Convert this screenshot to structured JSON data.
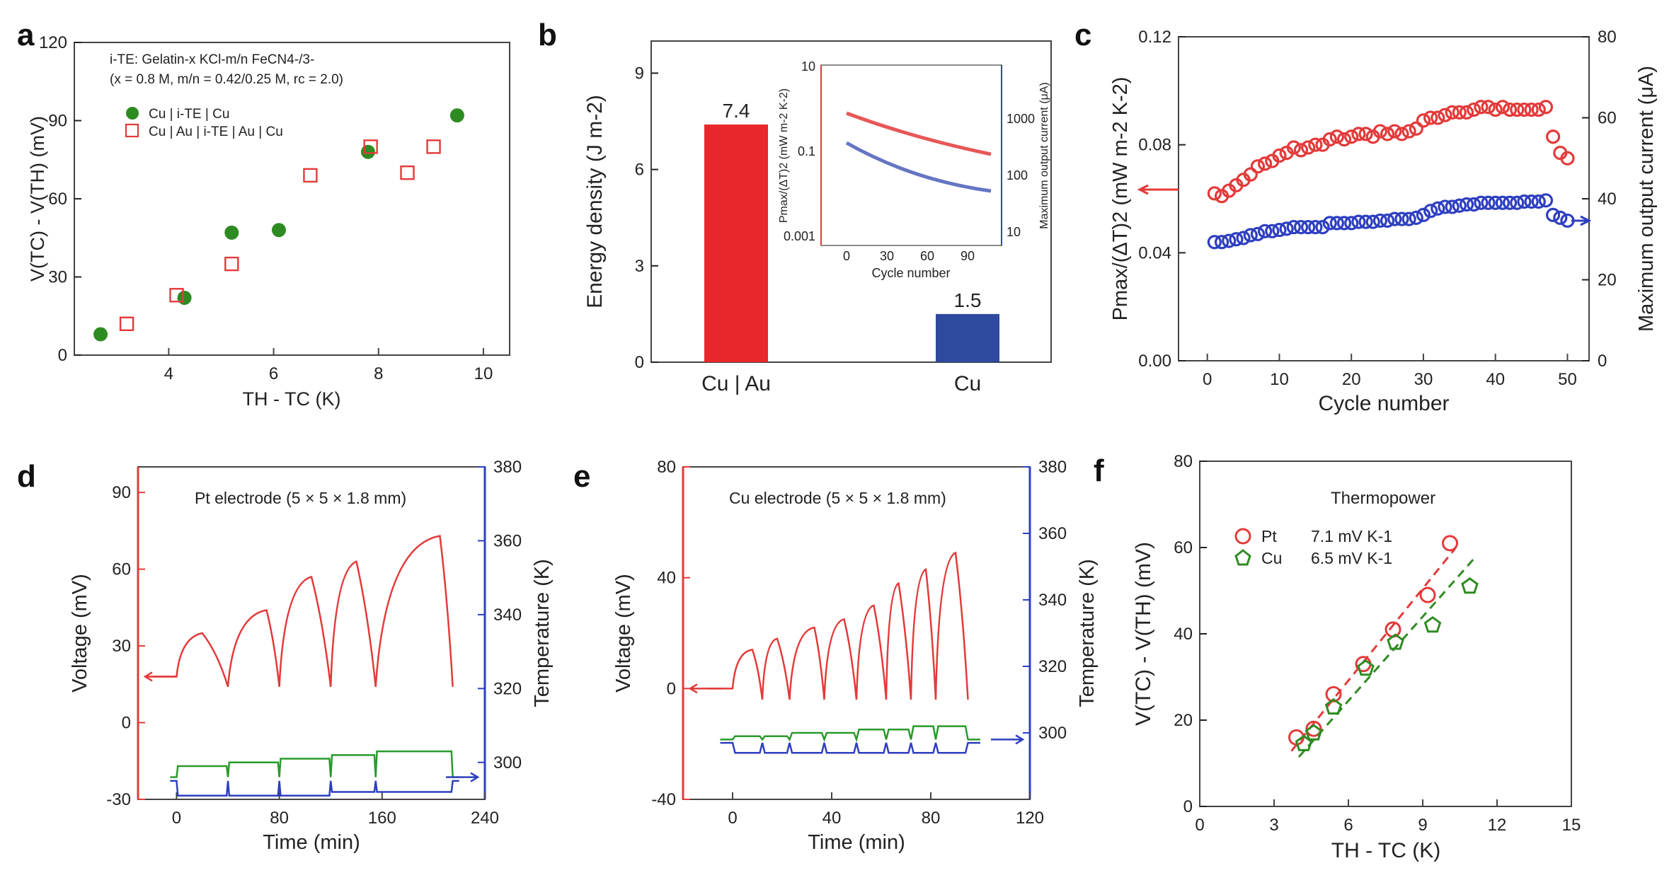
{
  "chart_data": [
    {
      "panel": "a",
      "type": "scatter",
      "annotation": [
        "i-TE: Gelatin-x KCl-m/n FeCN4-/3-",
        "(x = 0.8 M, m/n = 0.42/0.25 M, rc = 2.0)"
      ],
      "xlabel": "TH - TC (K)",
      "ylabel": "V(TC) - V(TH) (mV)",
      "xlim": [
        2.2,
        10.5
      ],
      "ylim": [
        0,
        120
      ],
      "xticks": [
        "4",
        "6",
        "8",
        "10"
      ],
      "yticks": [
        "0",
        "30",
        "60",
        "90",
        "120"
      ],
      "legend": [
        "Cu | i-TE | Cu",
        "Cu | Au | i-TE | Au | Cu"
      ],
      "series": [
        {
          "name": "Cu | i-TE | Cu",
          "color": "#2e8b22",
          "x": [
            2.7,
            4.3,
            5.2,
            6.1,
            7.8,
            9.5
          ],
          "y": [
            8,
            22,
            47,
            48,
            78,
            92
          ]
        },
        {
          "name": "Cu | Au | i-TE | Au | Cu",
          "color": "#e33a3a",
          "x": [
            3.2,
            4.15,
            5.2,
            6.7,
            7.85,
            8.55,
            9.05
          ],
          "y": [
            12,
            23,
            35,
            69,
            80,
            70,
            80
          ]
        }
      ]
    },
    {
      "panel": "b",
      "type": "bar",
      "ylabel": "Energy density (J m-2)",
      "ylim": [
        0,
        10
      ],
      "yticks": [
        "0",
        "3",
        "6",
        "9"
      ],
      "categories": [
        "Cu | Au",
        "Cu"
      ],
      "values": [
        7.4,
        1.5
      ],
      "value_labels": [
        "7.4",
        "1.5"
      ],
      "colors": [
        "#e8262b",
        "#2e4a9e"
      ],
      "inset": {
        "xlabel": "Cycle number",
        "ylabel_left": "Pmax/(ΔT)2 (mW m-2 K-2)",
        "ylabel_right": "Maximum output current (μA)",
        "xticks": [
          "0",
          "30",
          "60",
          "90"
        ],
        "yticks_left": [
          "0.001",
          "0.1",
          "10"
        ],
        "yticks_right": [
          "10",
          "100",
          "1000"
        ]
      }
    },
    {
      "panel": "c",
      "type": "scatter",
      "xlabel": "Cycle number",
      "ylabel_left": "Pmax/(ΔT)2 (mW m-2 K-2)",
      "ylabel_right": "Maximum output current (μA)",
      "xlim": [
        -4,
        53
      ],
      "ylim_left": [
        0,
        0.12
      ],
      "ylim_right": [
        0,
        80
      ],
      "xticks": [
        "0",
        "10",
        "20",
        "30",
        "40",
        "50"
      ],
      "yticks_left": [
        "0.00",
        "0.04",
        "0.08",
        "0.12"
      ],
      "yticks_right": [
        "0",
        "20",
        "40",
        "60",
        "80"
      ],
      "series": [
        {
          "name": "Pmax/(ΔT)2",
          "axis": "left",
          "color": "#e33a3a",
          "x": [
            1,
            2,
            3,
            4,
            5,
            6,
            7,
            8,
            9,
            10,
            11,
            12,
            13,
            14,
            15,
            16,
            17,
            18,
            19,
            20,
            21,
            22,
            23,
            24,
            25,
            26,
            27,
            28,
            29,
            30,
            31,
            32,
            33,
            34,
            35,
            36,
            37,
            38,
            39,
            40,
            41,
            42,
            43,
            44,
            45,
            46,
            47,
            48,
            49,
            50
          ],
          "y": [
            0.062,
            0.061,
            0.063,
            0.065,
            0.067,
            0.069,
            0.072,
            0.073,
            0.074,
            0.076,
            0.077,
            0.079,
            0.078,
            0.079,
            0.08,
            0.08,
            0.082,
            0.083,
            0.082,
            0.083,
            0.084,
            0.084,
            0.083,
            0.085,
            0.084,
            0.085,
            0.084,
            0.085,
            0.086,
            0.089,
            0.09,
            0.09,
            0.091,
            0.092,
            0.092,
            0.092,
            0.093,
            0.094,
            0.094,
            0.093,
            0.094,
            0.093,
            0.093,
            0.093,
            0.093,
            0.093,
            0.094,
            0.083,
            0.077,
            0.075
          ]
        },
        {
          "name": "Maximum output current",
          "axis": "right",
          "color": "#2e3fc0",
          "x": [
            1,
            2,
            3,
            4,
            5,
            6,
            7,
            8,
            9,
            10,
            11,
            12,
            13,
            14,
            15,
            16,
            17,
            18,
            19,
            20,
            21,
            22,
            23,
            24,
            25,
            26,
            27,
            28,
            29,
            30,
            31,
            32,
            33,
            34,
            35,
            36,
            37,
            38,
            39,
            40,
            41,
            42,
            43,
            44,
            45,
            46,
            47,
            48,
            49,
            50
          ],
          "y": [
            29.3,
            29.3,
            29.6,
            30,
            30.3,
            31,
            31.3,
            32,
            32,
            32.3,
            32.6,
            33,
            33,
            33,
            33,
            33,
            34,
            34,
            34,
            34,
            34.3,
            34.3,
            34.3,
            34.6,
            34.6,
            35,
            35,
            35,
            35.3,
            36,
            37,
            37.6,
            38,
            38,
            38.3,
            38.6,
            38.6,
            39,
            39,
            39,
            39,
            39,
            39,
            39.3,
            39.3,
            39.3,
            39.6,
            36,
            35.3,
            34.6
          ]
        }
      ]
    },
    {
      "panel": "d",
      "type": "line",
      "annotation": "Pt electrode (5 × 5 × 1.8 mm)",
      "xlabel": "Time (min)",
      "ylabel_left": "Voltage (mV)",
      "ylabel_right": "Temperature (K)",
      "xlim": [
        -30,
        240
      ],
      "ylim_left": [
        -30,
        100
      ],
      "ylim_right": [
        290,
        380
      ],
      "xticks": [
        "0",
        "80",
        "160",
        "240"
      ],
      "yticks_left": [
        "-30",
        "0",
        "30",
        "60",
        "90"
      ],
      "yticks_right": [
        "300",
        "320",
        "340",
        "360",
        "380"
      ],
      "cycles": [
        [
          0,
          20,
          40
        ],
        [
          40,
          70,
          80
        ],
        [
          80,
          105,
          120
        ],
        [
          120,
          140,
          155
        ],
        [
          155,
          205,
          215
        ]
      ],
      "voltage_baseline": 18,
      "voltage_peaks": [
        35,
        44,
        57,
        63,
        73
      ],
      "temperature_base": [
        296,
        296,
        296,
        296,
        296
      ],
      "temperature_hot": [
        299,
        300,
        301,
        302,
        303
      ],
      "temperature_cold": [
        291,
        291,
        291,
        292,
        292
      ]
    },
    {
      "panel": "e",
      "type": "line",
      "annotation": "Cu electrode (5 × 5 × 1.8 mm)",
      "xlabel": "Time (min)",
      "ylabel_left": "Voltage (mV)",
      "ylabel_right": "Temperature (K)",
      "xlim": [
        -20,
        120
      ],
      "ylim_left": [
        -40,
        80
      ],
      "ylim_right": [
        280,
        380
      ],
      "xticks": [
        "0",
        "40",
        "80",
        "120"
      ],
      "yticks_left": [
        "-40",
        "0",
        "40",
        "80"
      ],
      "yticks_right": [
        "300",
        "320",
        "340",
        "360",
        "380"
      ],
      "cycles": [
        [
          0,
          8,
          12
        ],
        [
          12,
          18,
          23
        ],
        [
          23,
          33,
          37
        ],
        [
          37,
          45,
          50
        ],
        [
          50,
          57,
          62
        ],
        [
          62,
          67,
          72
        ],
        [
          72,
          78,
          82
        ],
        [
          82,
          90,
          95
        ]
      ],
      "voltage_baseline": 0,
      "voltage_peaks": [
        14,
        18,
        22,
        25,
        30,
        38,
        43,
        49
      ],
      "temperature_base": [
        298,
        298,
        298,
        298,
        298,
        298,
        298,
        298
      ],
      "temperature_hot": [
        299,
        299,
        300,
        300,
        301,
        301,
        302,
        302
      ],
      "temperature_cold": [
        294,
        294,
        294,
        294,
        294,
        294,
        294,
        294
      ]
    },
    {
      "panel": "f",
      "type": "scatter",
      "annotation": "Thermopower",
      "xlabel": "TH - TC (K)",
      "ylabel": "V(TC) - V(TH) (mV)",
      "xlim": [
        0,
        15
      ],
      "ylim": [
        0,
        80
      ],
      "xticks": [
        "0",
        "3",
        "6",
        "9",
        "12",
        "15"
      ],
      "yticks": [
        "0",
        "20",
        "40",
        "60",
        "80"
      ],
      "legend": [
        {
          "name": "Pt",
          "value": "7.1 mV K-1"
        },
        {
          "name": "Cu",
          "value": "6.5 mV K-1"
        }
      ],
      "series": [
        {
          "name": "Pt",
          "color": "#e33a3a",
          "slope": 7.1,
          "x": [
            3.9,
            4.6,
            5.4,
            6.6,
            7.8,
            9.2,
            10.1
          ],
          "y": [
            16,
            18,
            26,
            33,
            41,
            49,
            61
          ]
        },
        {
          "name": "Cu",
          "color": "#2e8b22",
          "slope": 6.5,
          "x": [
            4.2,
            4.6,
            5.4,
            6.7,
            7.9,
            9.4,
            10.9
          ],
          "y": [
            14.5,
            17,
            23,
            32,
            38,
            42,
            51
          ]
        }
      ]
    }
  ]
}
